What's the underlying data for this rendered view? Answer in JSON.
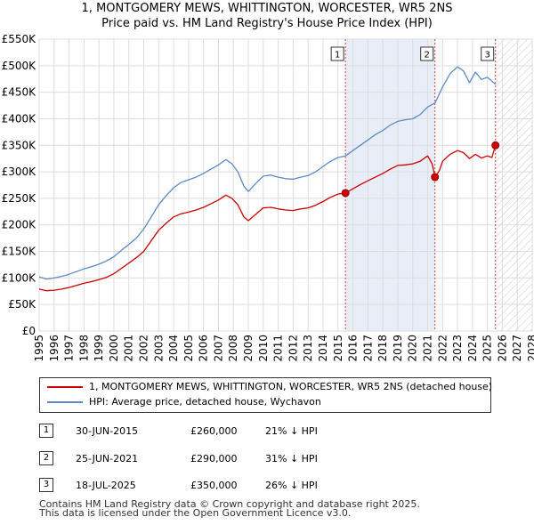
{
  "title": "1, MONTGOMERY MEWS, WHITTINGTON, WORCESTER, WR5 2NS",
  "subtitle": "Price paid vs. HM Land Registry's House Price Index (HPI)",
  "chart_data": {
    "type": "line",
    "title": "1, MONTGOMERY MEWS, WHITTINGTON, WORCESTER, WR5 2NS",
    "subtitle": "Price paid vs. HM Land Registry's House Price Index (HPI)",
    "xlabel": "",
    "ylabel": "",
    "xlim": [
      1995,
      2028
    ],
    "ylim": [
      0,
      550000
    ],
    "x_ticks": [
      "1995",
      "1996",
      "1997",
      "1998",
      "1999",
      "2000",
      "2001",
      "2002",
      "2003",
      "2004",
      "2005",
      "2006",
      "2007",
      "2008",
      "2009",
      "2010",
      "2011",
      "2012",
      "2013",
      "2014",
      "2015",
      "2016",
      "2017",
      "2018",
      "2019",
      "2020",
      "2021",
      "2022",
      "2023",
      "2024",
      "2025",
      "2026",
      "2027",
      "2028"
    ],
    "y_ticks": [
      {
        "value": 0,
        "label": "£0"
      },
      {
        "value": 50000,
        "label": "£50K"
      },
      {
        "value": 100000,
        "label": "£100K"
      },
      {
        "value": 150000,
        "label": "£150K"
      },
      {
        "value": 200000,
        "label": "£200K"
      },
      {
        "value": 250000,
        "label": "£250K"
      },
      {
        "value": 300000,
        "label": "£300K"
      },
      {
        "value": 350000,
        "label": "£350K"
      },
      {
        "value": 400000,
        "label": "£400K"
      },
      {
        "value": 450000,
        "label": "£450K"
      },
      {
        "value": 500000,
        "label": "£500K"
      },
      {
        "value": 550000,
        "label": "£550K"
      }
    ],
    "grid": true,
    "highlight_band": [
      2015.5,
      2021.5
    ],
    "future_hatch_from": 2025.55,
    "series": [
      {
        "name": "1, MONTGOMERY MEWS, WHITTINGTON, WORCESTER, WR5 2NS (detached house)",
        "color": "#cc0000",
        "points": [
          [
            1995.0,
            79000
          ],
          [
            1995.5,
            76000
          ],
          [
            1996.0,
            77000
          ],
          [
            1996.5,
            79000
          ],
          [
            1997.0,
            82000
          ],
          [
            1997.5,
            86000
          ],
          [
            1998.0,
            90000
          ],
          [
            1998.5,
            93000
          ],
          [
            1999.0,
            97000
          ],
          [
            1999.5,
            101000
          ],
          [
            2000.0,
            108000
          ],
          [
            2000.5,
            118000
          ],
          [
            2001.0,
            128000
          ],
          [
            2001.5,
            138000
          ],
          [
            2002.0,
            150000
          ],
          [
            2002.5,
            170000
          ],
          [
            2003.0,
            190000
          ],
          [
            2003.5,
            203000
          ],
          [
            2004.0,
            215000
          ],
          [
            2004.5,
            221000
          ],
          [
            2005.0,
            224000
          ],
          [
            2005.5,
            228000
          ],
          [
            2006.0,
            233000
          ],
          [
            2006.5,
            240000
          ],
          [
            2007.0,
            247000
          ],
          [
            2007.5,
            256000
          ],
          [
            2007.9,
            250000
          ],
          [
            2008.3,
            238000
          ],
          [
            2008.7,
            215000
          ],
          [
            2009.0,
            208000
          ],
          [
            2009.5,
            220000
          ],
          [
            2010.0,
            232000
          ],
          [
            2010.5,
            233000
          ],
          [
            2011.0,
            230000
          ],
          [
            2011.5,
            228000
          ],
          [
            2012.0,
            227000
          ],
          [
            2012.5,
            230000
          ],
          [
            2013.0,
            232000
          ],
          [
            2013.5,
            237000
          ],
          [
            2014.0,
            244000
          ],
          [
            2014.5,
            252000
          ],
          [
            2015.0,
            258000
          ],
          [
            2015.5,
            260000
          ],
          [
            2016.0,
            268000
          ],
          [
            2016.5,
            276000
          ],
          [
            2017.0,
            283000
          ],
          [
            2017.5,
            290000
          ],
          [
            2018.0,
            297000
          ],
          [
            2018.5,
            305000
          ],
          [
            2019.0,
            312000
          ],
          [
            2019.5,
            313000
          ],
          [
            2020.0,
            315000
          ],
          [
            2020.5,
            320000
          ],
          [
            2021.0,
            330000
          ],
          [
            2021.3,
            315000
          ],
          [
            2021.5,
            290000
          ],
          [
            2021.8,
            303000
          ],
          [
            2022.0,
            320000
          ],
          [
            2022.5,
            333000
          ],
          [
            2023.0,
            340000
          ],
          [
            2023.4,
            336000
          ],
          [
            2023.8,
            325000
          ],
          [
            2024.2,
            333000
          ],
          [
            2024.6,
            326000
          ],
          [
            2025.0,
            330000
          ],
          [
            2025.3,
            327000
          ],
          [
            2025.54,
            350000
          ]
        ]
      },
      {
        "name": "HPI: Average price, detached house, Wychavon",
        "color": "#5b8ac6",
        "points": [
          [
            1995.0,
            102000
          ],
          [
            1995.5,
            98000
          ],
          [
            1996.0,
            100000
          ],
          [
            1996.5,
            103000
          ],
          [
            1997.0,
            107000
          ],
          [
            1997.5,
            112000
          ],
          [
            1998.0,
            117000
          ],
          [
            1998.5,
            121000
          ],
          [
            1999.0,
            126000
          ],
          [
            1999.5,
            132000
          ],
          [
            2000.0,
            140000
          ],
          [
            2000.5,
            152000
          ],
          [
            2001.0,
            163000
          ],
          [
            2001.5,
            175000
          ],
          [
            2002.0,
            192000
          ],
          [
            2002.5,
            215000
          ],
          [
            2003.0,
            238000
          ],
          [
            2003.5,
            255000
          ],
          [
            2004.0,
            270000
          ],
          [
            2004.5,
            280000
          ],
          [
            2005.0,
            285000
          ],
          [
            2005.5,
            290000
          ],
          [
            2006.0,
            297000
          ],
          [
            2006.5,
            305000
          ],
          [
            2007.0,
            313000
          ],
          [
            2007.5,
            323000
          ],
          [
            2007.9,
            315000
          ],
          [
            2008.3,
            300000
          ],
          [
            2008.7,
            273000
          ],
          [
            2009.0,
            263000
          ],
          [
            2009.5,
            278000
          ],
          [
            2010.0,
            292000
          ],
          [
            2010.5,
            294000
          ],
          [
            2011.0,
            290000
          ],
          [
            2011.5,
            287000
          ],
          [
            2012.0,
            286000
          ],
          [
            2012.5,
            290000
          ],
          [
            2013.0,
            293000
          ],
          [
            2013.5,
            300000
          ],
          [
            2014.0,
            310000
          ],
          [
            2014.5,
            320000
          ],
          [
            2015.0,
            327000
          ],
          [
            2015.5,
            330000
          ],
          [
            2016.0,
            340000
          ],
          [
            2016.5,
            350000
          ],
          [
            2017.0,
            360000
          ],
          [
            2017.5,
            370000
          ],
          [
            2018.0,
            378000
          ],
          [
            2018.5,
            388000
          ],
          [
            2019.0,
            395000
          ],
          [
            2019.5,
            398000
          ],
          [
            2020.0,
            400000
          ],
          [
            2020.5,
            408000
          ],
          [
            2021.0,
            422000
          ],
          [
            2021.5,
            430000
          ],
          [
            2022.0,
            460000
          ],
          [
            2022.5,
            485000
          ],
          [
            2023.0,
            498000
          ],
          [
            2023.4,
            490000
          ],
          [
            2023.8,
            468000
          ],
          [
            2024.2,
            488000
          ],
          [
            2024.6,
            474000
          ],
          [
            2025.0,
            478000
          ],
          [
            2025.55,
            465000
          ]
        ]
      }
    ],
    "sales": [
      {
        "label": "1",
        "x": 2015.5,
        "value": 260000
      },
      {
        "label": "2",
        "x": 2021.49,
        "value": 290000
      },
      {
        "label": "3",
        "x": 2025.54,
        "value": 350000
      }
    ]
  },
  "legend": {
    "items": [
      {
        "label": "1, MONTGOMERY MEWS, WHITTINGTON, WORCESTER, WR5 2NS (detached house)",
        "color": "#cc0000"
      },
      {
        "label": "HPI: Average price, detached house, Wychavon",
        "color": "#5b8ac6"
      }
    ]
  },
  "table": {
    "rows": [
      {
        "num": "1",
        "date": "30-JUN-2015",
        "price": "£260,000",
        "hpi": "21% ↓ HPI"
      },
      {
        "num": "2",
        "date": "25-JUN-2021",
        "price": "£290,000",
        "hpi": "31% ↓ HPI"
      },
      {
        "num": "3",
        "date": "18-JUL-2025",
        "price": "£350,000",
        "hpi": "26% ↓ HPI"
      }
    ]
  },
  "footer": {
    "line1": "Contains HM Land Registry data © Crown copyright and database right 2025.",
    "line2": "This data is licensed under the Open Government Licence v3.0."
  }
}
